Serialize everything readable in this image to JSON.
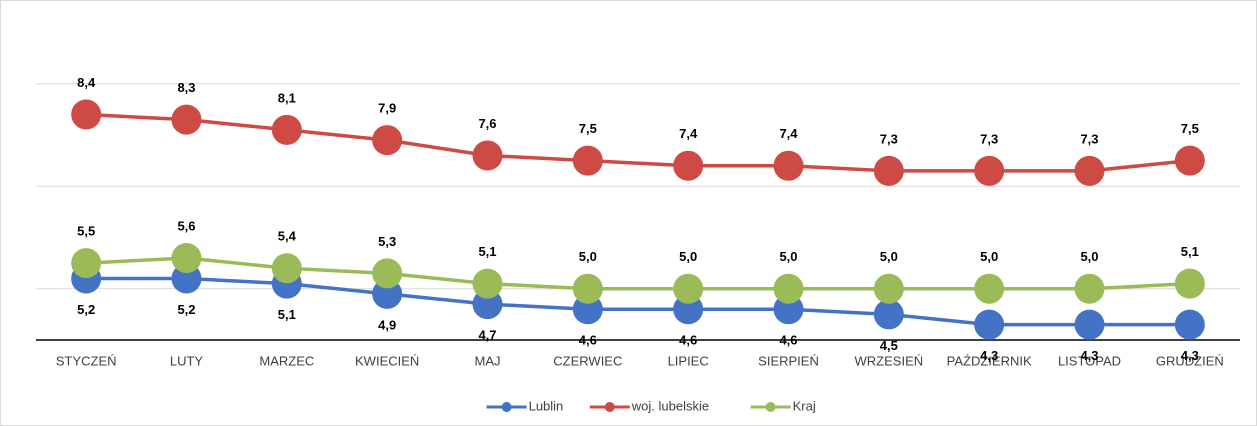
{
  "chart_data": {
    "type": "line",
    "categories": [
      "STYCZEŃ",
      "LUTY",
      "MARZEC",
      "KWIECIEŃ",
      "MAJ",
      "CZERWIEC",
      "LIPIEC",
      "SIERPIEŃ",
      "WRZESIEŃ",
      "PAŹDZIERNIK",
      "LISTOPAD",
      "GRUDZIEŃ"
    ],
    "series": [
      {
        "name": "Lublin",
        "color": "#4472c4",
        "values": [
          5.2,
          5.2,
          5.1,
          4.9,
          4.7,
          4.6,
          4.6,
          4.6,
          4.5,
          4.3,
          4.3,
          4.3
        ],
        "value_labels": [
          "5,2",
          "5,2",
          "5,1",
          "4,9",
          "4,7",
          "4,6",
          "4,6",
          "4,6",
          "4,5",
          "4,3",
          "4,3",
          "4,3"
        ]
      },
      {
        "name": "woj. lubelskie",
        "color": "#cd4a45",
        "values": [
          8.4,
          8.3,
          8.1,
          7.9,
          7.6,
          7.5,
          7.4,
          7.4,
          7.3,
          7.3,
          7.3,
          7.5
        ],
        "value_labels": [
          "8,4",
          "8,3",
          "8,1",
          "7,9",
          "7,6",
          "7,5",
          "7,4",
          "7,4",
          "7,3",
          "7,3",
          "7,3",
          "7,5"
        ]
      },
      {
        "name": "Kraj",
        "color": "#9bbb59",
        "values": [
          5.5,
          5.6,
          5.4,
          5.3,
          5.1,
          5.0,
          5.0,
          5.0,
          5.0,
          5.0,
          5.0,
          5.1
        ],
        "value_labels": [
          "5,5",
          "5,6",
          "5,4",
          "5,3",
          "5,1",
          "5,0",
          "5,0",
          "5,0",
          "5,0",
          "5,0",
          "5,0",
          "5,1"
        ]
      }
    ],
    "ylim": [
      4,
      10.4
    ],
    "yticks": [
      5,
      7,
      9
    ],
    "grid": true,
    "legend": "bottom"
  }
}
